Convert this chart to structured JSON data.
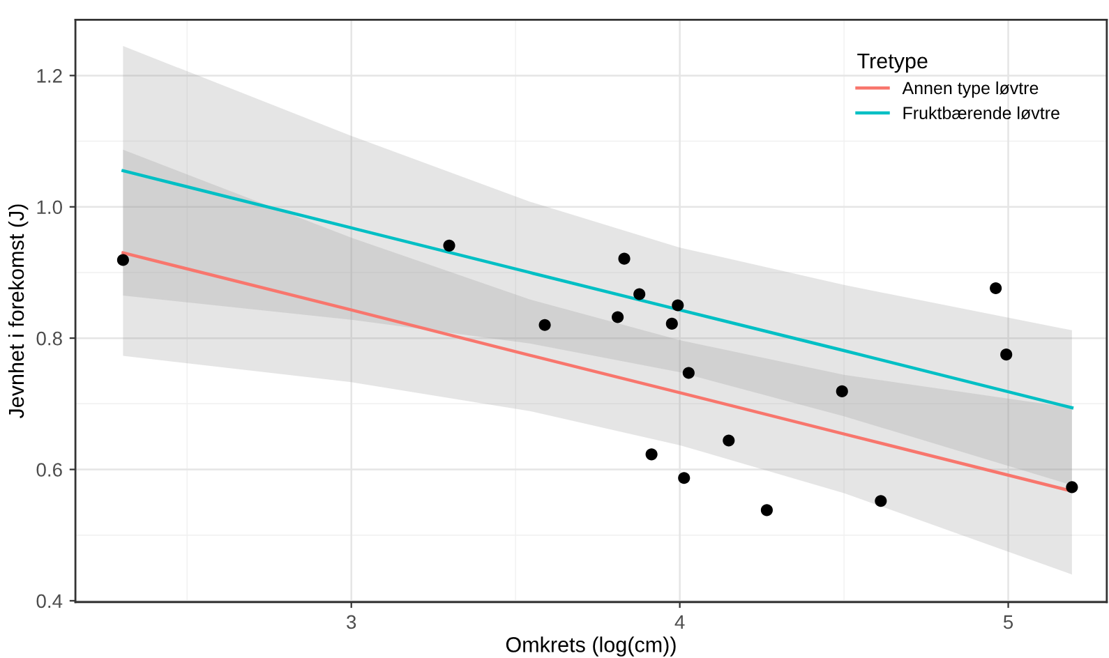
{
  "chart_data": {
    "type": "line",
    "xlabel": "Omkrets (log(cm))",
    "ylabel": "Jevnhet i forekomst (J)",
    "legend_title": "Tretype",
    "xlim": [
      2.16,
      5.3
    ],
    "ylim": [
      0.398,
      1.285
    ],
    "xticks": [
      3,
      4,
      5
    ],
    "yticks": [
      0.4,
      0.6,
      0.8,
      {
        "value": 1.0,
        "label": "1.0"
      },
      1.2
    ],
    "grid": true,
    "legend": "top right",
    "series": [
      {
        "type": "scatter",
        "color": "#000000",
        "marker": "circle",
        "x": [
          2.305,
          3.298,
          3.589,
          3.831,
          3.877,
          3.994,
          3.811,
          3.976,
          4.027,
          3.914,
          4.149,
          4.013,
          4.265,
          4.494,
          4.612,
          4.962,
          4.994,
          5.194
        ],
        "values": [
          0.919,
          0.941,
          0.82,
          0.921,
          0.867,
          0.85,
          0.832,
          0.822,
          0.747,
          0.623,
          0.644,
          0.587,
          0.538,
          0.719,
          0.552,
          0.876,
          0.775,
          0.573
        ]
      },
      {
        "name": "Annen type løvtre",
        "color": "#f8766d",
        "x": [
          2.305,
          3.0,
          3.543,
          4.0,
          4.5,
          5.194
        ],
        "values": [
          0.93,
          0.843,
          0.774,
          0.717,
          0.654,
          0.567
        ],
        "lower": [
          0.773,
          0.733,
          0.689,
          0.637,
          0.564,
          0.44
        ],
        "upper": [
          1.087,
          0.953,
          0.859,
          0.797,
          0.744,
          0.694
        ]
      },
      {
        "name": "Fruktbærende løvtre",
        "color": "#00bfc4",
        "x": [
          2.305,
          3.0,
          3.543,
          4.0,
          4.5,
          5.194
        ],
        "values": [
          1.055,
          0.968,
          0.9,
          0.843,
          0.781,
          0.694
        ],
        "lower": [
          0.865,
          0.828,
          0.792,
          0.748,
          0.681,
          0.576
        ],
        "upper": [
          1.245,
          1.108,
          1.008,
          0.938,
          0.881,
          0.812
        ]
      }
    ]
  }
}
